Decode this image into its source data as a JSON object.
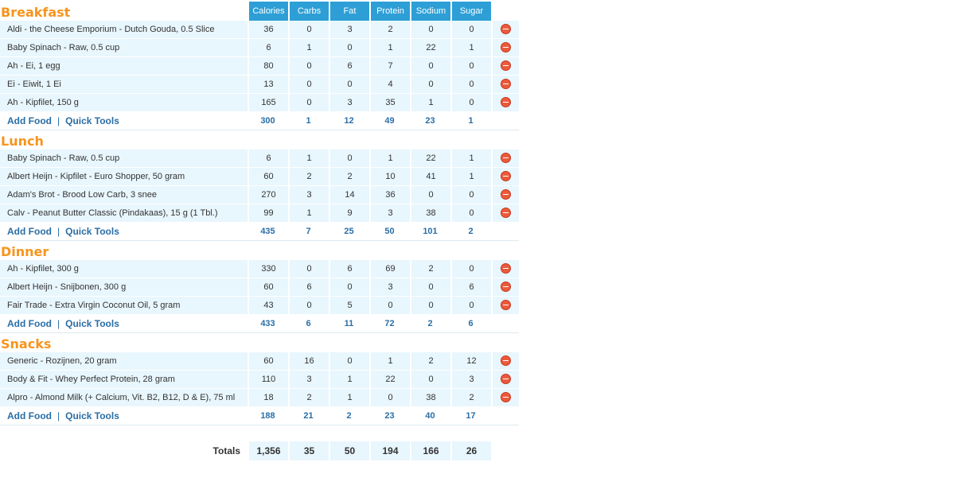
{
  "columns": [
    "Calories",
    "Carbs",
    "Fat",
    "Protein",
    "Sodium",
    "Sugar"
  ],
  "links": {
    "add_food": "Add Food",
    "quick_tools": "Quick Tools",
    "separator": "|"
  },
  "meals": [
    {
      "title": "Breakfast",
      "foods": [
        {
          "name": "Aldi - the Cheese Emporium - Dutch Gouda, 0.5 Slice",
          "values": [
            "36",
            "0",
            "3",
            "2",
            "0",
            "0"
          ]
        },
        {
          "name": "Baby Spinach - Raw, 0.5 cup",
          "values": [
            "6",
            "1",
            "0",
            "1",
            "22",
            "1"
          ]
        },
        {
          "name": "Ah - Ei, 1 egg",
          "values": [
            "80",
            "0",
            "6",
            "7",
            "0",
            "0"
          ]
        },
        {
          "name": "Ei - Eiwit, 1 Ei",
          "values": [
            "13",
            "0",
            "0",
            "4",
            "0",
            "0"
          ]
        },
        {
          "name": "Ah - Kipfilet, 150 g",
          "values": [
            "165",
            "0",
            "3",
            "35",
            "1",
            "0"
          ]
        }
      ],
      "totals": [
        "300",
        "1",
        "12",
        "49",
        "23",
        "1"
      ]
    },
    {
      "title": "Lunch",
      "foods": [
        {
          "name": "Baby Spinach - Raw, 0.5 cup",
          "values": [
            "6",
            "1",
            "0",
            "1",
            "22",
            "1"
          ]
        },
        {
          "name": "Albert Heijn - Kipfilet - Euro Shopper, 50 gram",
          "values": [
            "60",
            "2",
            "2",
            "10",
            "41",
            "1"
          ]
        },
        {
          "name": "Adam's Brot - Brood Low Carb, 3 snee",
          "values": [
            "270",
            "3",
            "14",
            "36",
            "0",
            "0"
          ]
        },
        {
          "name": "Calv - Peanut Butter Classic (Pindakaas), 15 g (1 Tbl.)",
          "values": [
            "99",
            "1",
            "9",
            "3",
            "38",
            "0"
          ]
        }
      ],
      "totals": [
        "435",
        "7",
        "25",
        "50",
        "101",
        "2"
      ]
    },
    {
      "title": "Dinner",
      "foods": [
        {
          "name": "Ah - Kipfilet, 300 g",
          "values": [
            "330",
            "0",
            "6",
            "69",
            "2",
            "0"
          ]
        },
        {
          "name": "Albert Heijn - Snijbonen, 300 g",
          "values": [
            "60",
            "6",
            "0",
            "3",
            "0",
            "6"
          ]
        },
        {
          "name": "Fair Trade - Extra Virgin Coconut Oil, 5 gram",
          "values": [
            "43",
            "0",
            "5",
            "0",
            "0",
            "0"
          ]
        }
      ],
      "totals": [
        "433",
        "6",
        "11",
        "72",
        "2",
        "6"
      ]
    },
    {
      "title": "Snacks",
      "foods": [
        {
          "name": "Generic - Rozijnen, 20 gram",
          "values": [
            "60",
            "16",
            "0",
            "1",
            "2",
            "12"
          ]
        },
        {
          "name": "Body & Fit - Whey Perfect Protein, 28 gram",
          "values": [
            "110",
            "3",
            "1",
            "22",
            "0",
            "3"
          ]
        },
        {
          "name": "Alpro - Almond Milk (+ Calcium, Vit. B2, B12, D & E), 75 ml",
          "values": [
            "18",
            "2",
            "1",
            "0",
            "38",
            "2"
          ]
        }
      ],
      "totals": [
        "188",
        "21",
        "2",
        "23",
        "40",
        "17"
      ]
    }
  ],
  "grand_totals": {
    "label": "Totals",
    "values": [
      "1,356",
      "35",
      "50",
      "194",
      "166",
      "26"
    ]
  },
  "icons": {
    "delete": "remove-circle-icon"
  },
  "colors": {
    "header_bg": "#2d9fd6",
    "meal_title": "#f7941d",
    "row_bg": "#e8f6fd",
    "link": "#2a6ea6",
    "delete": "#ec5a3c"
  }
}
